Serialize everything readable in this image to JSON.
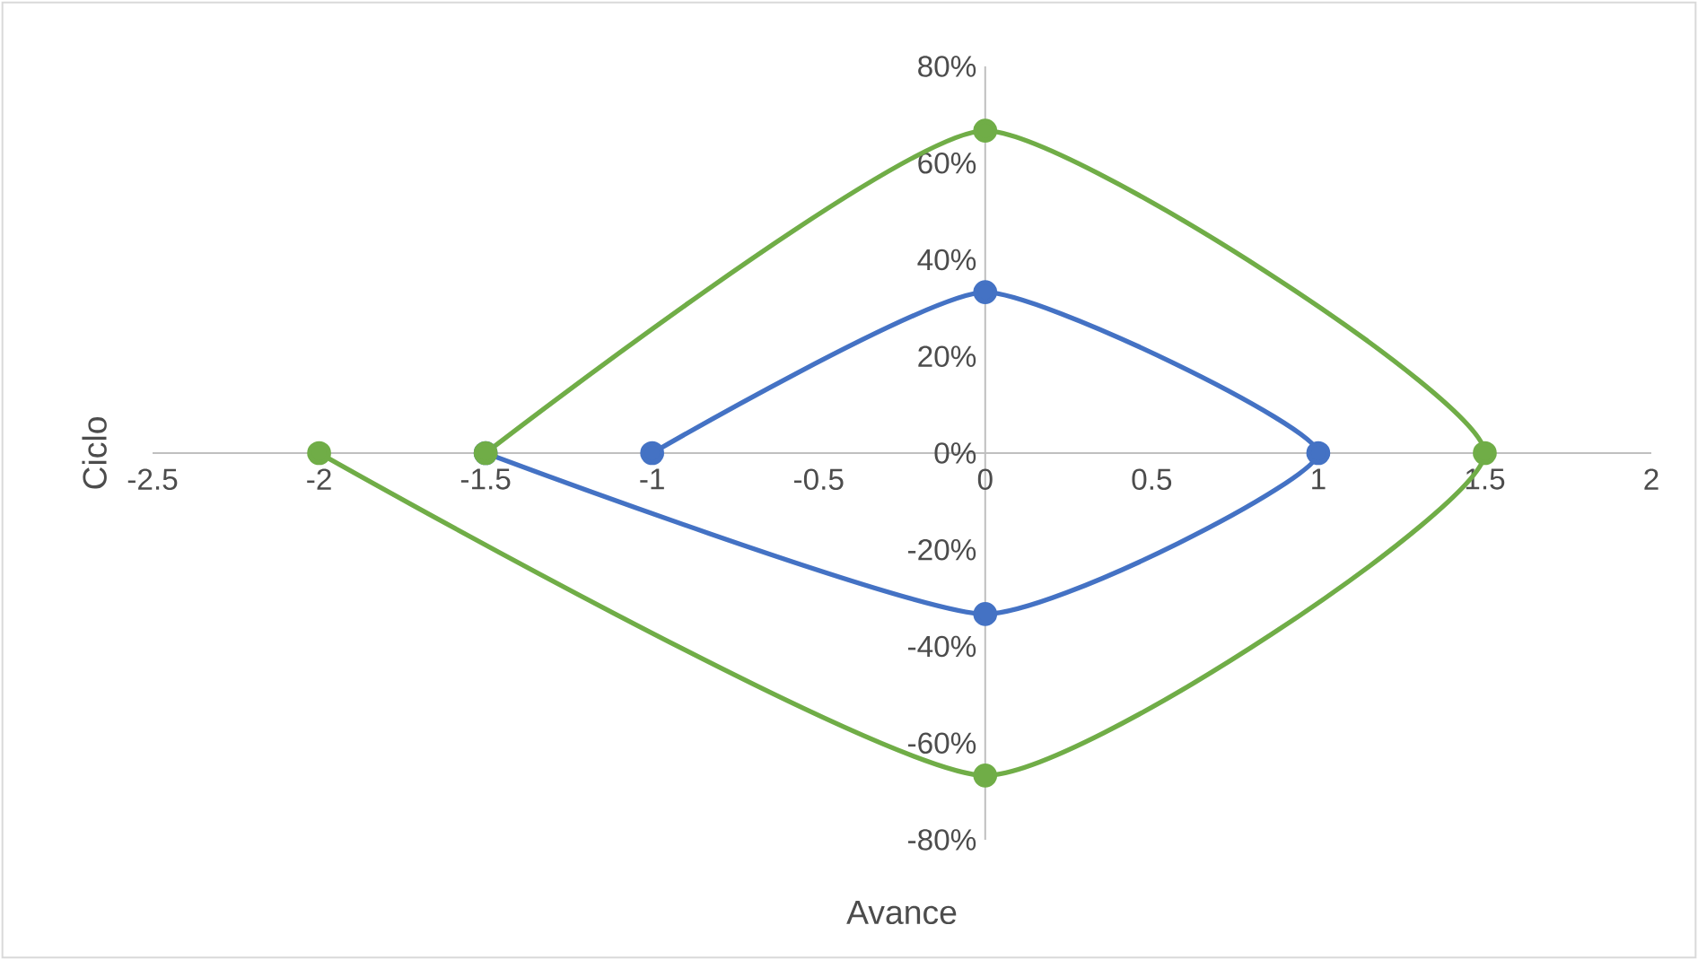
{
  "chart_data": {
    "type": "line",
    "xlabel": "Avance",
    "ylabel": "Ciclo",
    "marker": "circle",
    "xlim": [
      -2.5,
      2
    ],
    "ylim": [
      -80,
      80
    ],
    "xticks": [
      -2.5,
      -2,
      -1.5,
      -1,
      -0.5,
      0,
      0.5,
      1,
      1.5,
      2
    ],
    "yticks": [
      {
        "value": -80,
        "label": "-80%"
      },
      {
        "value": -60,
        "label": "-60%"
      },
      {
        "value": -40,
        "label": "-40%"
      },
      {
        "value": -20,
        "label": "-20%"
      },
      {
        "value": 0,
        "label": "0%"
      },
      {
        "value": 20,
        "label": "20%"
      },
      {
        "value": 40,
        "label": "40%"
      },
      {
        "value": 60,
        "label": "60%"
      },
      {
        "value": 80,
        "label": "80%"
      }
    ],
    "series": [
      {
        "color": "#4472c4",
        "x": [
          -1,
          0,
          1,
          0,
          -1.5
        ],
        "values": [
          0,
          33.3,
          0,
          -33.3,
          0
        ]
      },
      {
        "color": "#70ad47",
        "x": [
          -1.5,
          0,
          1.5,
          0,
          -2
        ],
        "values": [
          0,
          66.7,
          0,
          -66.7,
          0
        ]
      }
    ]
  }
}
